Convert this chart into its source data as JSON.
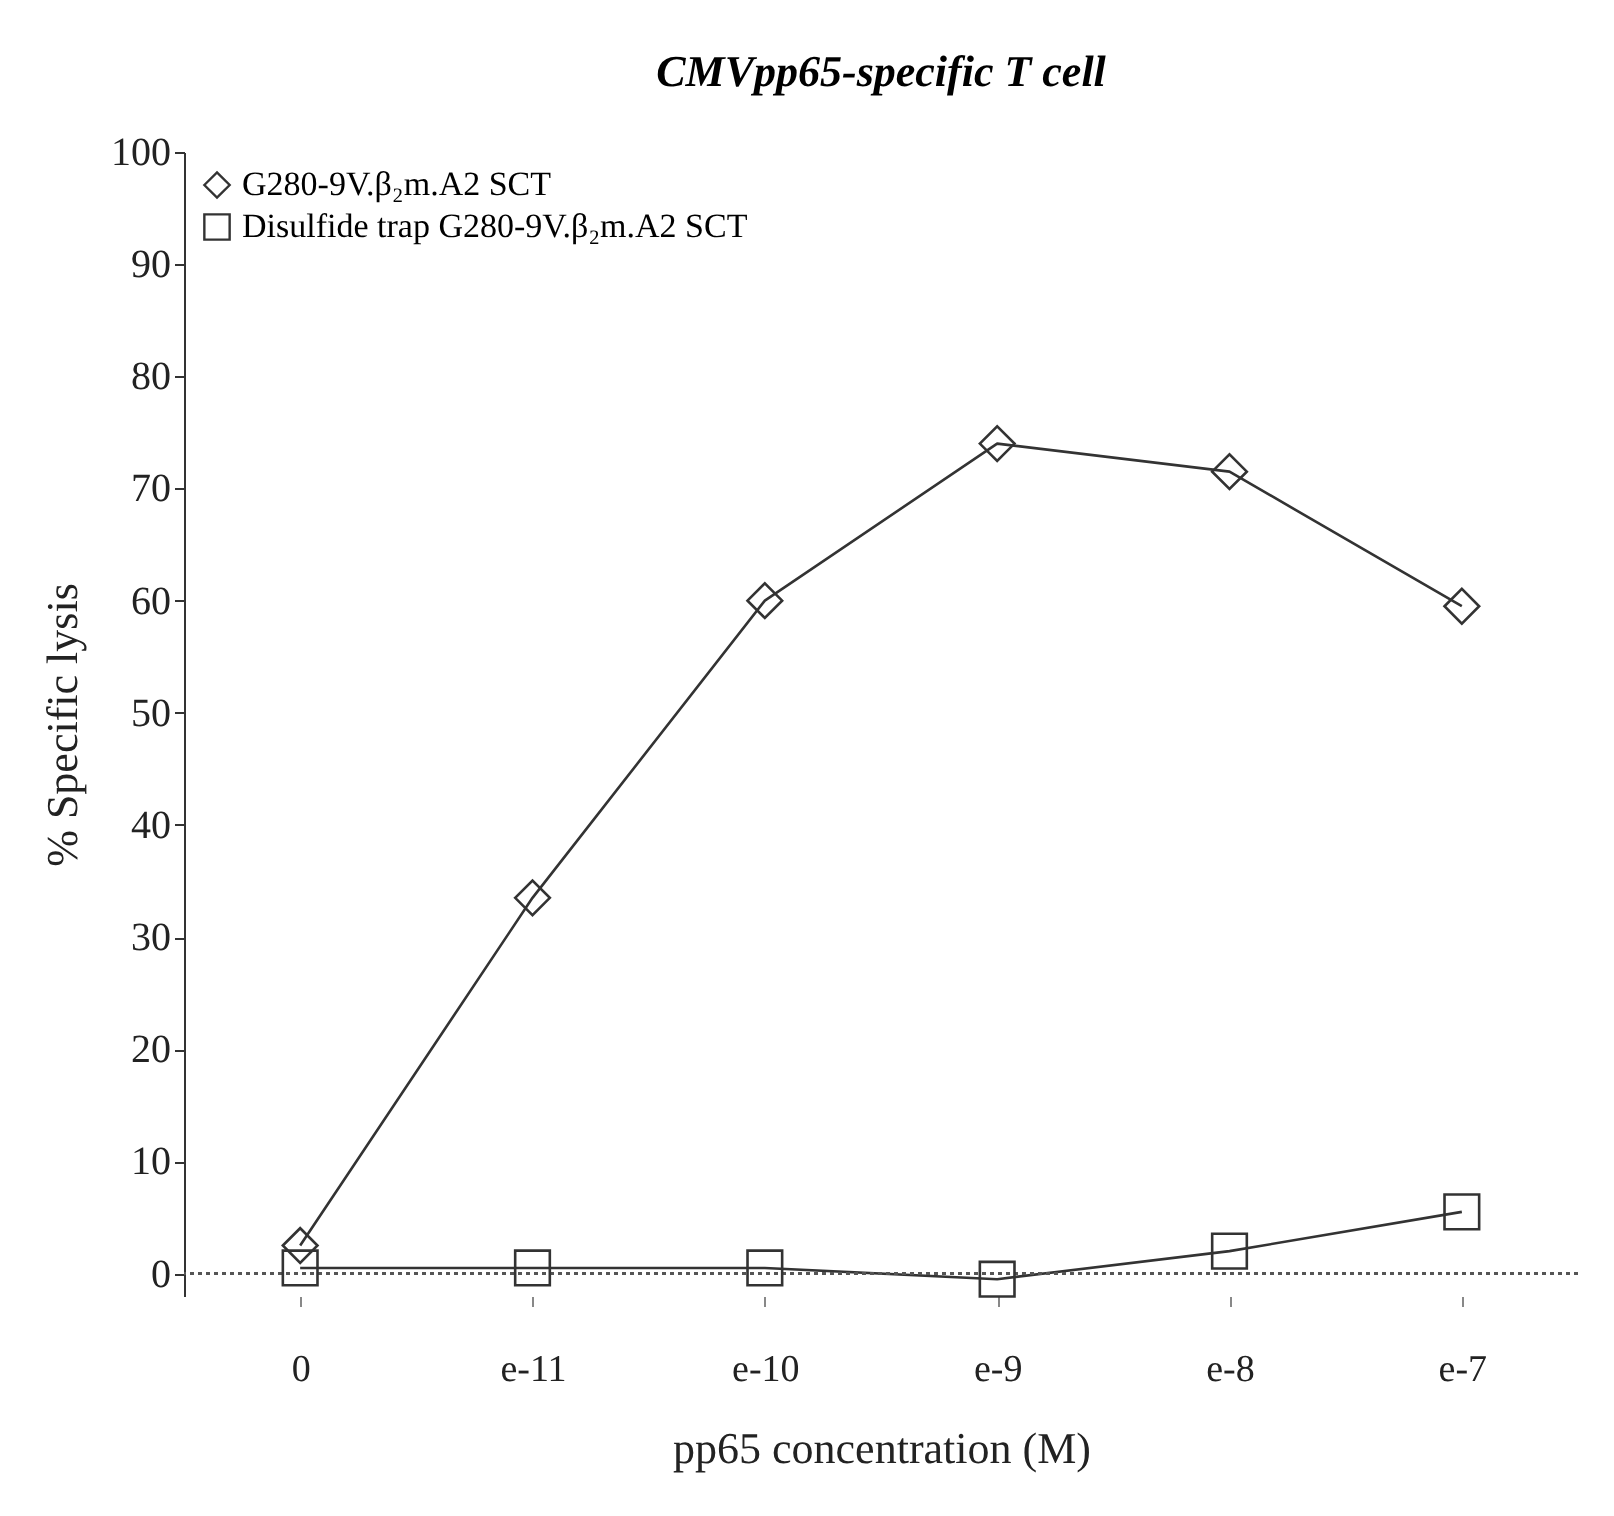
{
  "chart_data": {
    "type": "line",
    "title": "CMVpp65-specific T cell",
    "xlabel": "pp65 concentration (M)",
    "ylabel": "% Specific lysis",
    "categories": [
      "0",
      "e-11",
      "e-10",
      "e-9",
      "e-8",
      "e-7"
    ],
    "series": [
      {
        "name": "G280-9V.β₂m.A2 SCT",
        "color": "#333333",
        "marker": "diamond",
        "values": [
          2.5,
          33.5,
          60,
          74,
          71.5,
          59.5
        ]
      },
      {
        "name": "Disulfide trap G280-9V.β₂m.A2 SCT",
        "color": "#333333",
        "marker": "square",
        "values": [
          0.5,
          0.5,
          0.5,
          -0.5,
          2,
          5.5
        ]
      }
    ],
    "ylim": [
      -2,
      100
    ],
    "yticks": [
      0,
      10,
      20,
      30,
      40,
      50,
      60,
      70,
      80,
      90,
      100
    ],
    "ref_lines": [
      {
        "axis": "y",
        "value": 0,
        "color": "#555555",
        "line_style": "dotted"
      }
    ],
    "legend": "top left",
    "grid": false,
    "line_style": "solid"
  }
}
